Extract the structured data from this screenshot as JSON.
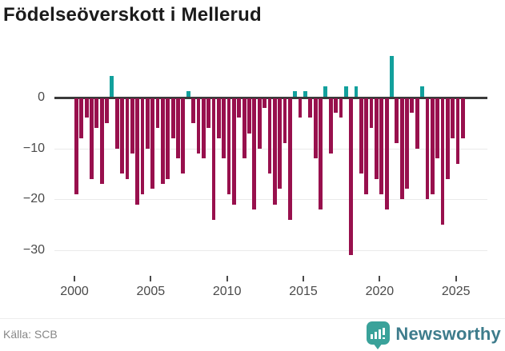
{
  "title": "Födelseöverskott i Mellerud",
  "source": "Källa: SCB",
  "brand": {
    "name": "Newsworthy",
    "icon_color": "#3aa29a",
    "text_color": "#3e7c8c"
  },
  "chart_data": {
    "type": "bar",
    "title": "Födelseöverskott i Mellerud",
    "start_year": 2000,
    "periods_per_year": 3,
    "values": [
      -19,
      -8,
      -4,
      -16,
      -6,
      -17,
      -5,
      4,
      -10,
      -15,
      -16,
      -11,
      -21,
      -19,
      -10,
      -18,
      -6,
      -17,
      -16,
      -8,
      -12,
      -15,
      1,
      -5,
      -11,
      -12,
      -6,
      -24,
      -8,
      -12,
      -19,
      -21,
      -4,
      -12,
      -7,
      -22,
      -10,
      -2,
      -15,
      -21,
      -18,
      -9,
      -24,
      1,
      -4,
      1,
      -4,
      -12,
      -22,
      2,
      -11,
      -3,
      -4,
      2,
      -31,
      2,
      -15,
      -19,
      -6,
      -16,
      -19,
      -22,
      8,
      -9,
      -20,
      -18,
      -3,
      -10,
      2,
      -20,
      -19,
      -12,
      -25,
      -16,
      -8,
      -13,
      -8
    ],
    "x_ticks": [
      2000,
      2005,
      2010,
      2015,
      2020,
      2025
    ],
    "y_ticks": [
      {
        "label": "0",
        "value": 0
      },
      {
        "label": "−10",
        "value": -10
      },
      {
        "label": "−20",
        "value": -20
      },
      {
        "label": "−30",
        "value": -30
      }
    ],
    "ylim": [
      -33,
      9
    ],
    "grid": true,
    "legend": "none",
    "negative_color": "#98104d",
    "positive_color": "#12a09c"
  }
}
